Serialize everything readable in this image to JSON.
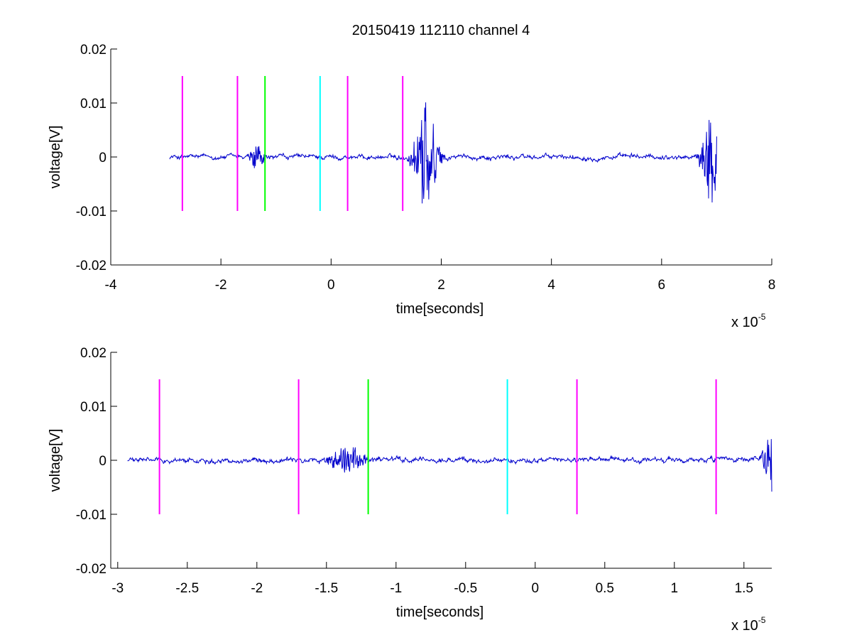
{
  "figure": {
    "title": "20150419 112110 channel 4"
  },
  "chart_data": [
    {
      "type": "line",
      "title": "20150419 112110 channel 4",
      "xlabel": "time[seconds]",
      "ylabel": "voltage[V]",
      "x_exponent_label": "x 10",
      "x_exponent": "-5",
      "xlim": [
        -4,
        8
      ],
      "ylim": [
        -0.02,
        0.02
      ],
      "xticks": [
        -4,
        -2,
        0,
        2,
        4,
        6,
        8
      ],
      "xtick_labels": [
        "-4",
        "-2",
        "0",
        "2",
        "4",
        "6",
        "8"
      ],
      "yticks": [
        -0.02,
        -0.01,
        0,
        0.01,
        0.02
      ],
      "ytick_labels": [
        "-0.02",
        "-0.01",
        "0",
        "0.01",
        "0.02"
      ],
      "grid": false,
      "signal_color": "#0000cc",
      "signal": {
        "x_range": [
          -2.93,
          7.0
        ],
        "bursts": [
          {
            "x": -1.35,
            "width": 0.2,
            "amplitude": 0.0025
          },
          {
            "x": 1.72,
            "width": 0.3,
            "amplitude": 0.011
          },
          {
            "x": 6.9,
            "width": 0.25,
            "amplitude": 0.0085
          }
        ]
      },
      "markers": [
        {
          "x": -2.7,
          "y_range": [
            -0.01,
            0.015
          ],
          "color": "#ff00ff"
        },
        {
          "x": -1.7,
          "y_range": [
            -0.01,
            0.015
          ],
          "color": "#ff00ff"
        },
        {
          "x": -1.2,
          "y_range": [
            -0.01,
            0.015
          ],
          "color": "#00ff00"
        },
        {
          "x": -0.2,
          "y_range": [
            -0.01,
            0.015
          ],
          "color": "#00ffff"
        },
        {
          "x": 0.3,
          "y_range": [
            -0.01,
            0.015
          ],
          "color": "#ff00ff"
        },
        {
          "x": 1.3,
          "y_range": [
            -0.01,
            0.015
          ],
          "color": "#ff00ff"
        }
      ]
    },
    {
      "type": "line",
      "xlabel": "time[seconds]",
      "ylabel": "voltage[V]",
      "x_exponent_label": "x 10",
      "x_exponent": "-5",
      "xlim": [
        -3.05,
        1.7
      ],
      "ylim": [
        -0.02,
        0.02
      ],
      "xticks": [
        -3,
        -2.5,
        -2,
        -1.5,
        -1,
        -0.5,
        0,
        0.5,
        1,
        1.5
      ],
      "xtick_labels": [
        "-3",
        "-2.5",
        "-2",
        "-1.5",
        "-1",
        "-0.5",
        "0",
        "0.5",
        "1",
        "1.5"
      ],
      "yticks": [
        -0.02,
        -0.01,
        0,
        0.01,
        0.02
      ],
      "ytick_labels": [
        "-0.02",
        "-0.01",
        "0",
        "0.01",
        "0.02"
      ],
      "grid": false,
      "signal_color": "#0000cc",
      "signal": {
        "x_range": [
          -2.93,
          1.7
        ],
        "bursts": [
          {
            "x": -1.35,
            "width": 0.2,
            "amplitude": 0.0025
          },
          {
            "x": 1.68,
            "width": 0.06,
            "amplitude": 0.008
          }
        ]
      },
      "markers": [
        {
          "x": -2.7,
          "y_range": [
            -0.01,
            0.015
          ],
          "color": "#ff00ff"
        },
        {
          "x": -1.7,
          "y_range": [
            -0.01,
            0.015
          ],
          "color": "#ff00ff"
        },
        {
          "x": -1.2,
          "y_range": [
            -0.01,
            0.015
          ],
          "color": "#00ff00"
        },
        {
          "x": -0.2,
          "y_range": [
            -0.01,
            0.015
          ],
          "color": "#00ffff"
        },
        {
          "x": 0.3,
          "y_range": [
            -0.01,
            0.015
          ],
          "color": "#ff00ff"
        },
        {
          "x": 1.3,
          "y_range": [
            -0.01,
            0.015
          ],
          "color": "#ff00ff"
        }
      ]
    }
  ]
}
